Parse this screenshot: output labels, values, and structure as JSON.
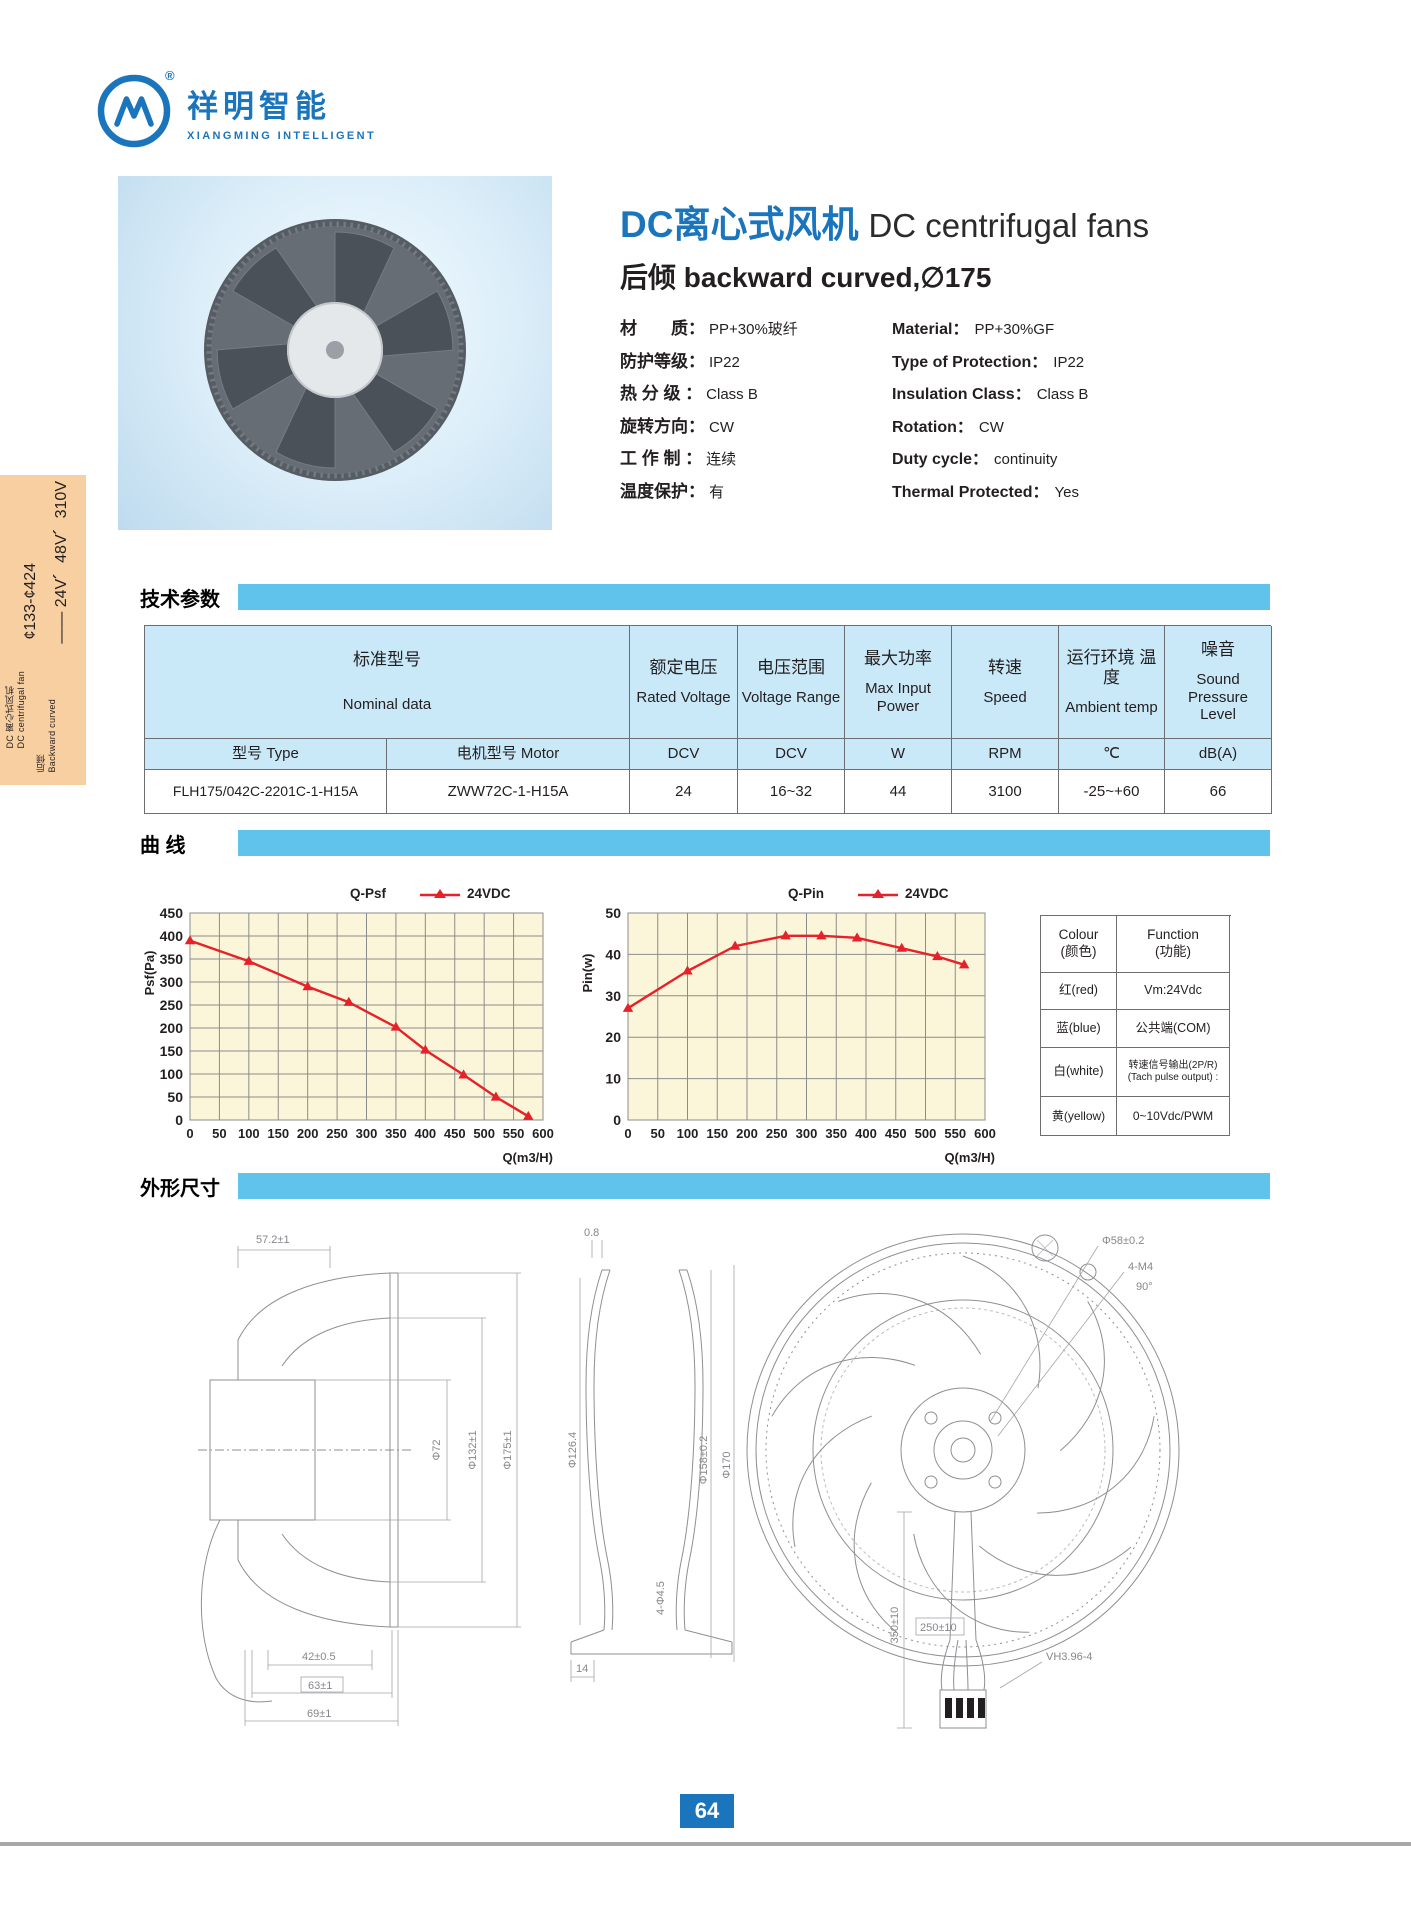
{
  "brand": {
    "logo_cn": "祥明智能",
    "logo_en": "XIANGMING  INTELLIGENT",
    "reg": "®"
  },
  "side_tab": {
    "voltages": "—— 24V、48V、310V",
    "sizes": "¢133-¢424",
    "product_cn": "DC 离心式风机",
    "product_en": "DC centrifugal fan",
    "type_cn": "后倾",
    "type_en": "Backward curved"
  },
  "header": {
    "title_cn": "DC离心式风机",
    "title_en": "DC centrifugal fans",
    "subtitle": "后倾  backward curved,∅175",
    "specs": [
      {
        "cn_label": "材　　质：",
        "cn_value": "PP+30%玻纤",
        "en_label": "Material：",
        "en_value": "PP+30%GF"
      },
      {
        "cn_label": "防护等级：",
        "cn_value": "IP22",
        "en_label": "Type of Protection：",
        "en_value": "IP22"
      },
      {
        "cn_label": "热 分 级 ：",
        "cn_value": "Class B",
        "en_label": "Insulation Class：",
        "en_value": "Class B"
      },
      {
        "cn_label": "旋转方向：",
        "cn_value": "CW",
        "en_label": "Rotation：",
        "en_value": "CW"
      },
      {
        "cn_label": "工 作 制 ：",
        "cn_value": "连续",
        "en_label": "Duty cycle：",
        "en_value": "continuity"
      },
      {
        "cn_label": "温度保护：",
        "cn_value": "有",
        "en_label": "Thermal Protected：",
        "en_value": "Yes"
      }
    ]
  },
  "sections": {
    "tech": "技术参数",
    "curves": "曲  线",
    "dims": "外形尺寸"
  },
  "spec_table": {
    "col1_cn": "标准型号",
    "col1_en": "Nominal data",
    "headers": [
      {
        "cn": "额定电压",
        "en": "Rated Voltage"
      },
      {
        "cn": "电压范围",
        "en": "Voltage Range"
      },
      {
        "cn": "最大功率",
        "en": "Max Input Power"
      },
      {
        "cn": "转速",
        "en": "Speed"
      },
      {
        "cn": "运行环境 温度",
        "en": "Ambient temp"
      },
      {
        "cn": "噪音",
        "en": "Sound Pressure Level"
      }
    ],
    "sub_headers": [
      "型号  Type",
      "电机型号  Motor",
      "DCV",
      "DCV",
      "W",
      "RPM",
      "℃",
      "dB(A)"
    ],
    "row": [
      "FLH175/042C-2201C-1-H15A",
      "ZWW72C-1-H15A",
      "24",
      "16~32",
      "44",
      "3100",
      "-25~+60",
      "66"
    ]
  },
  "chart_data": [
    {
      "type": "line",
      "title": "Q-Psf",
      "legend": "24VDC",
      "ylabel": "Psf(Pa)",
      "xlabel": "Q(m3/H)",
      "xlim": [
        0,
        600
      ],
      "xstep": 50,
      "ylim": [
        0,
        450
      ],
      "ystep": 50,
      "grid": true,
      "series": [
        {
          "name": "24VDC",
          "color": "#e62129",
          "points": [
            [
              0,
              390
            ],
            [
              100,
              345
            ],
            [
              200,
              290
            ],
            [
              270,
              256
            ],
            [
              350,
              202
            ],
            [
              400,
              152
            ],
            [
              465,
              98
            ],
            [
              520,
              50
            ],
            [
              575,
              8
            ]
          ]
        }
      ]
    },
    {
      "type": "line",
      "title": "Q-Pin",
      "legend": "24VDC",
      "ylabel": "Pin(w)",
      "xlabel": "Q(m3/H)",
      "xlim": [
        0,
        600
      ],
      "xstep": 50,
      "ylim": [
        0,
        50
      ],
      "ystep": 10,
      "grid": true,
      "series": [
        {
          "name": "24VDC",
          "color": "#e62129",
          "points": [
            [
              0,
              27
            ],
            [
              100,
              36
            ],
            [
              180,
              42
            ],
            [
              265,
              44.5
            ],
            [
              325,
              44.5
            ],
            [
              385,
              44
            ],
            [
              460,
              41.5
            ],
            [
              520,
              39.5
            ],
            [
              565,
              37.5
            ]
          ]
        }
      ]
    }
  ],
  "wire_table": {
    "colour_en": "Colour",
    "colour_cn": "(颜色)",
    "function_en": "Function",
    "function_cn": "(功能)",
    "rows": [
      {
        "colour": "红(red)",
        "f1": "Vm:24Vdc",
        "f2": ""
      },
      {
        "colour": "蓝(blue)",
        "f1": "公共端(COM)",
        "f2": ""
      },
      {
        "colour": "白(white)",
        "f1": "转速信号输出(2P/R)",
        "f2": "(Tach pulse output) :"
      },
      {
        "colour": "黄(yellow)",
        "f1": "0~10Vdc/PWM",
        "f2": ""
      }
    ]
  },
  "dims": {
    "v1": {
      "top": "57.2±1",
      "d1": "Φ72",
      "d2": "Φ132±1",
      "d3": "Φ175±1",
      "b1": "42±0.5",
      "b2": "63±1",
      "b3": "69±1"
    },
    "v2": {
      "t": "0.8",
      "d1": "Φ126.4",
      "d2": "Φ158±0.2",
      "d3": "Φ170",
      "holes": "4-Φ4.5",
      "b": "14"
    },
    "v3": {
      "hub": "Φ58±0.2",
      "screws": "4-M4",
      "angle": "90°",
      "len1": "350±10",
      "len2": "250±10",
      "conn": "VH3.96-4"
    }
  },
  "footer": {
    "page": "64"
  }
}
